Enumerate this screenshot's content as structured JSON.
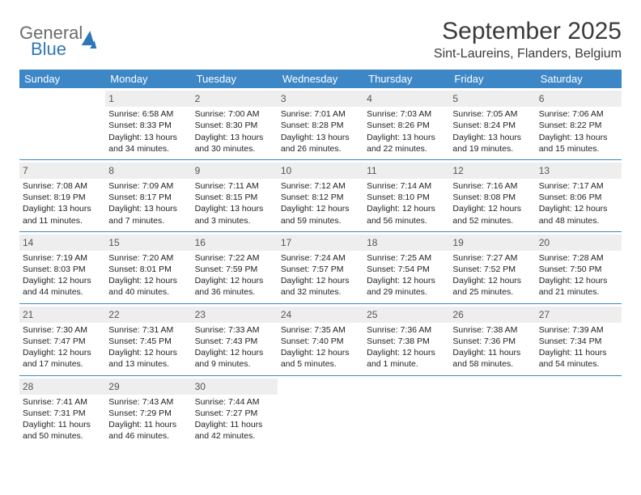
{
  "logo": {
    "word1": "General",
    "word2": "Blue"
  },
  "title": {
    "month": "September 2025",
    "location": "Sint-Laureins, Flanders, Belgium"
  },
  "colors": {
    "header_bg": "#3d87c7",
    "header_fg": "#ffffff",
    "daynum_bg": "#eeeeee",
    "rule": "#3d87c7"
  },
  "day_labels": [
    "Sunday",
    "Monday",
    "Tuesday",
    "Wednesday",
    "Thursday",
    "Friday",
    "Saturday"
  ],
  "weeks": [
    [
      null,
      {
        "n": "1",
        "sr": "Sunrise: 6:58 AM",
        "ss": "Sunset: 8:33 PM",
        "d1": "Daylight: 13 hours",
        "d2": "and 34 minutes."
      },
      {
        "n": "2",
        "sr": "Sunrise: 7:00 AM",
        "ss": "Sunset: 8:30 PM",
        "d1": "Daylight: 13 hours",
        "d2": "and 30 minutes."
      },
      {
        "n": "3",
        "sr": "Sunrise: 7:01 AM",
        "ss": "Sunset: 8:28 PM",
        "d1": "Daylight: 13 hours",
        "d2": "and 26 minutes."
      },
      {
        "n": "4",
        "sr": "Sunrise: 7:03 AM",
        "ss": "Sunset: 8:26 PM",
        "d1": "Daylight: 13 hours",
        "d2": "and 22 minutes."
      },
      {
        "n": "5",
        "sr": "Sunrise: 7:05 AM",
        "ss": "Sunset: 8:24 PM",
        "d1": "Daylight: 13 hours",
        "d2": "and 19 minutes."
      },
      {
        "n": "6",
        "sr": "Sunrise: 7:06 AM",
        "ss": "Sunset: 8:22 PM",
        "d1": "Daylight: 13 hours",
        "d2": "and 15 minutes."
      }
    ],
    [
      {
        "n": "7",
        "sr": "Sunrise: 7:08 AM",
        "ss": "Sunset: 8:19 PM",
        "d1": "Daylight: 13 hours",
        "d2": "and 11 minutes."
      },
      {
        "n": "8",
        "sr": "Sunrise: 7:09 AM",
        "ss": "Sunset: 8:17 PM",
        "d1": "Daylight: 13 hours",
        "d2": "and 7 minutes."
      },
      {
        "n": "9",
        "sr": "Sunrise: 7:11 AM",
        "ss": "Sunset: 8:15 PM",
        "d1": "Daylight: 13 hours",
        "d2": "and 3 minutes."
      },
      {
        "n": "10",
        "sr": "Sunrise: 7:12 AM",
        "ss": "Sunset: 8:12 PM",
        "d1": "Daylight: 12 hours",
        "d2": "and 59 minutes."
      },
      {
        "n": "11",
        "sr": "Sunrise: 7:14 AM",
        "ss": "Sunset: 8:10 PM",
        "d1": "Daylight: 12 hours",
        "d2": "and 56 minutes."
      },
      {
        "n": "12",
        "sr": "Sunrise: 7:16 AM",
        "ss": "Sunset: 8:08 PM",
        "d1": "Daylight: 12 hours",
        "d2": "and 52 minutes."
      },
      {
        "n": "13",
        "sr": "Sunrise: 7:17 AM",
        "ss": "Sunset: 8:06 PM",
        "d1": "Daylight: 12 hours",
        "d2": "and 48 minutes."
      }
    ],
    [
      {
        "n": "14",
        "sr": "Sunrise: 7:19 AM",
        "ss": "Sunset: 8:03 PM",
        "d1": "Daylight: 12 hours",
        "d2": "and 44 minutes."
      },
      {
        "n": "15",
        "sr": "Sunrise: 7:20 AM",
        "ss": "Sunset: 8:01 PM",
        "d1": "Daylight: 12 hours",
        "d2": "and 40 minutes."
      },
      {
        "n": "16",
        "sr": "Sunrise: 7:22 AM",
        "ss": "Sunset: 7:59 PM",
        "d1": "Daylight: 12 hours",
        "d2": "and 36 minutes."
      },
      {
        "n": "17",
        "sr": "Sunrise: 7:24 AM",
        "ss": "Sunset: 7:57 PM",
        "d1": "Daylight: 12 hours",
        "d2": "and 32 minutes."
      },
      {
        "n": "18",
        "sr": "Sunrise: 7:25 AM",
        "ss": "Sunset: 7:54 PM",
        "d1": "Daylight: 12 hours",
        "d2": "and 29 minutes."
      },
      {
        "n": "19",
        "sr": "Sunrise: 7:27 AM",
        "ss": "Sunset: 7:52 PM",
        "d1": "Daylight: 12 hours",
        "d2": "and 25 minutes."
      },
      {
        "n": "20",
        "sr": "Sunrise: 7:28 AM",
        "ss": "Sunset: 7:50 PM",
        "d1": "Daylight: 12 hours",
        "d2": "and 21 minutes."
      }
    ],
    [
      {
        "n": "21",
        "sr": "Sunrise: 7:30 AM",
        "ss": "Sunset: 7:47 PM",
        "d1": "Daylight: 12 hours",
        "d2": "and 17 minutes."
      },
      {
        "n": "22",
        "sr": "Sunrise: 7:31 AM",
        "ss": "Sunset: 7:45 PM",
        "d1": "Daylight: 12 hours",
        "d2": "and 13 minutes."
      },
      {
        "n": "23",
        "sr": "Sunrise: 7:33 AM",
        "ss": "Sunset: 7:43 PM",
        "d1": "Daylight: 12 hours",
        "d2": "and 9 minutes."
      },
      {
        "n": "24",
        "sr": "Sunrise: 7:35 AM",
        "ss": "Sunset: 7:40 PM",
        "d1": "Daylight: 12 hours",
        "d2": "and 5 minutes."
      },
      {
        "n": "25",
        "sr": "Sunrise: 7:36 AM",
        "ss": "Sunset: 7:38 PM",
        "d1": "Daylight: 12 hours",
        "d2": "and 1 minute."
      },
      {
        "n": "26",
        "sr": "Sunrise: 7:38 AM",
        "ss": "Sunset: 7:36 PM",
        "d1": "Daylight: 11 hours",
        "d2": "and 58 minutes."
      },
      {
        "n": "27",
        "sr": "Sunrise: 7:39 AM",
        "ss": "Sunset: 7:34 PM",
        "d1": "Daylight: 11 hours",
        "d2": "and 54 minutes."
      }
    ],
    [
      {
        "n": "28",
        "sr": "Sunrise: 7:41 AM",
        "ss": "Sunset: 7:31 PM",
        "d1": "Daylight: 11 hours",
        "d2": "and 50 minutes."
      },
      {
        "n": "29",
        "sr": "Sunrise: 7:43 AM",
        "ss": "Sunset: 7:29 PM",
        "d1": "Daylight: 11 hours",
        "d2": "and 46 minutes."
      },
      {
        "n": "30",
        "sr": "Sunrise: 7:44 AM",
        "ss": "Sunset: 7:27 PM",
        "d1": "Daylight: 11 hours",
        "d2": "and 42 minutes."
      },
      null,
      null,
      null,
      null
    ]
  ]
}
